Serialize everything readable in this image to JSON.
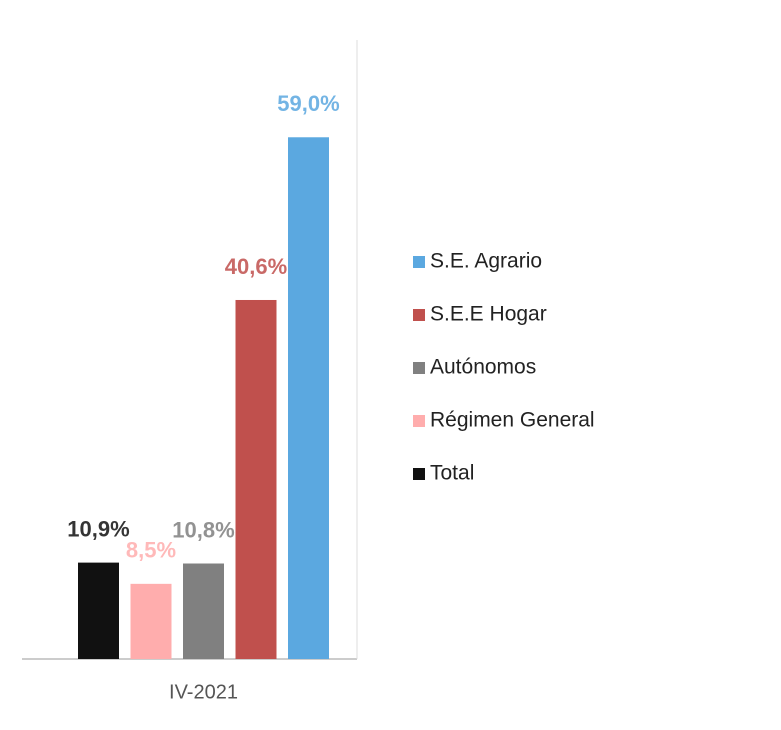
{
  "chart_data": {
    "type": "bar",
    "categories": [
      "IV-2021"
    ],
    "series": [
      {
        "name": "Total",
        "color": "#111111",
        "values": [
          10.9
        ],
        "value_labels": [
          "10,9%"
        ]
      },
      {
        "name": "Régimen General",
        "color": "#ffadad",
        "values": [
          8.5
        ],
        "value_labels": [
          "8,5%"
        ]
      },
      {
        "name": "Autónomos",
        "color": "#808080",
        "values": [
          10.8
        ],
        "value_labels": [
          "10,8%"
        ]
      },
      {
        "name": "S.E.E Hogar",
        "color": "#c0504d",
        "values": [
          40.6
        ],
        "value_labels": [
          "40,6%"
        ]
      },
      {
        "name": "S.E. Agrario",
        "color": "#5ba8e0",
        "values": [
          59.0
        ],
        "value_labels": [
          "59,0%"
        ]
      }
    ],
    "ylim": [
      0,
      70
    ],
    "legend": "right"
  }
}
